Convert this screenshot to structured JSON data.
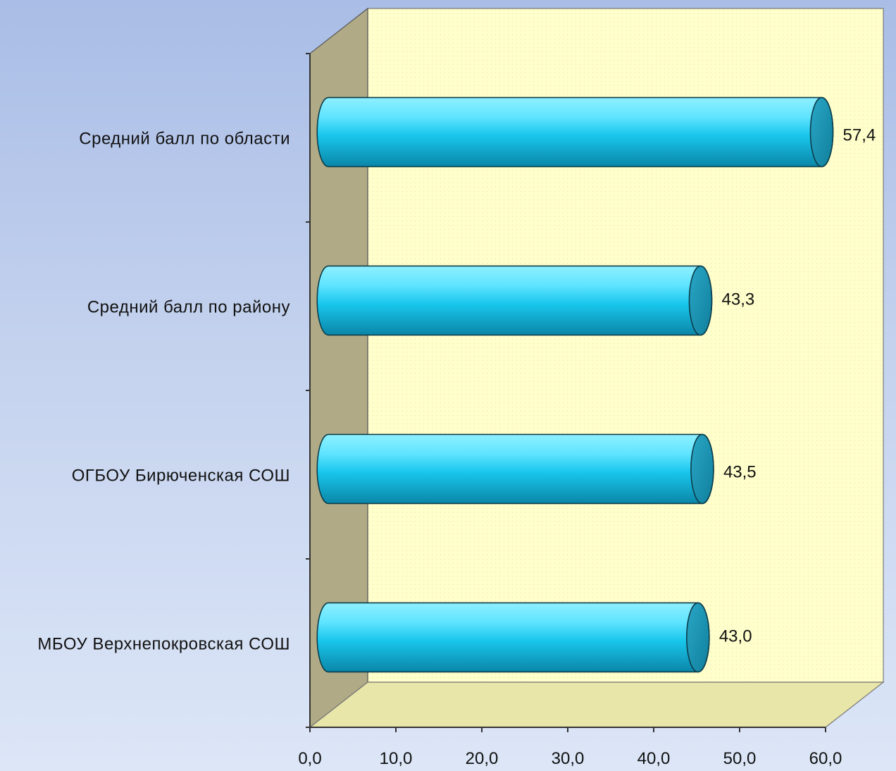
{
  "chart_data": {
    "type": "bar",
    "orientation": "horizontal",
    "categories": [
      "Средний балл по области",
      "Средний балл по району",
      "ОГБОУ Бирюченская СОШ",
      "МБОУ Верхнепокровская СОШ"
    ],
    "values": [
      57.4,
      43.3,
      43.5,
      43.0
    ],
    "value_labels": [
      "57,4",
      "43,3",
      "43,5",
      "43,0"
    ],
    "title": "",
    "xlabel": "",
    "ylabel": "",
    "xlim": [
      0,
      60
    ],
    "xticks": [
      0,
      10,
      20,
      30,
      40,
      50,
      60
    ],
    "xtick_labels": [
      "0,0",
      "10,0",
      "20,0",
      "30,0",
      "40,0",
      "50,0",
      "60,0"
    ],
    "grid": false,
    "legend": "none",
    "style": "3d-cylinder",
    "colors": {
      "bar_light": "#8ff0ff",
      "bar_mid": "#19c6ec",
      "bar_dark": "#0a86a8",
      "bar_end": "#0f7f9c",
      "back_wall": "#ffffcc",
      "side_wall": "#b0ab86",
      "floor": "#e8e6a8"
    }
  }
}
